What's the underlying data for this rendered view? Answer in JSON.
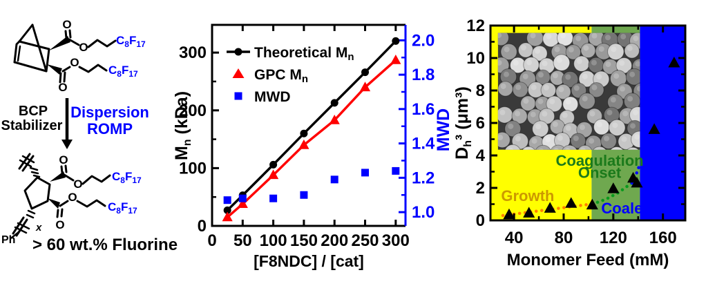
{
  "colors": {
    "accent_blue": "#0000FF",
    "series_black": "#000000",
    "series_red": "#FF0000",
    "region_yellow": "#FFFF00",
    "region_green": "#6FA84F",
    "region_blue": "#0000FF",
    "growth_text": "#CC9900",
    "coagulation_text": "#1B7A1B",
    "trend_orange": "#FF8000",
    "trend_green": "#0A9A1E",
    "trend_blue": "#0000FF"
  },
  "left_panel": {
    "bcp_line1": "BCP",
    "bcp_line2": "Stabilizer",
    "romp_line1": "Dispersion",
    "romp_line2": "ROMP",
    "fluorine_note": "> 60 wt.% Fluorine",
    "ph_label": "Ph",
    "repeat_subscript": "x",
    "o_atom": "O",
    "c8f17_parts": {
      "c": "C",
      "sub1": "8",
      "f": "F",
      "sub2": "17"
    }
  },
  "chart_data": [
    {
      "id": "mn_mwd_plot",
      "type": "line",
      "x": [
        25,
        50,
        100,
        150,
        200,
        250,
        300
      ],
      "series": [
        {
          "name_base": "Theoretical M",
          "name_sub": "n",
          "axis": "left",
          "color": "#000000",
          "marker": "circle",
          "line": true,
          "values": [
            27,
            53,
            106,
            160,
            213,
            266,
            320
          ]
        },
        {
          "name_base": "GPC M",
          "name_sub": "n",
          "axis": "left",
          "color": "#FF0000",
          "marker": "triangle",
          "line": true,
          "values": [
            15,
            38,
            88,
            140,
            183,
            240,
            287
          ]
        },
        {
          "name_base": "MWD",
          "name_sub": "",
          "axis": "right",
          "color": "#0000FF",
          "marker": "square",
          "line": false,
          "values": [
            1.07,
            1.08,
            1.08,
            1.1,
            1.19,
            1.23,
            1.24
          ]
        }
      ],
      "legend": [
        {
          "base": "Theoretical M",
          "sub": "n"
        },
        {
          "base": "GPC M",
          "sub": "n"
        },
        {
          "base": "MWD",
          "sub": ""
        }
      ],
      "xlabel": "[F8NDC] / [cat]",
      "ylabel_left": {
        "base": "M",
        "sub": "n",
        "rest": " (kDa)"
      },
      "ylabel_right": "MWD",
      "xlim": [
        0,
        316
      ],
      "ylim_left": [
        0,
        348
      ],
      "ylim_right": [
        0.92,
        2.09
      ],
      "xticks": [
        0,
        50,
        100,
        150,
        200,
        250,
        300
      ],
      "yticks_left": [
        0,
        100,
        200,
        300
      ],
      "yminor_left": [
        50,
        150,
        250
      ],
      "yticks_right": [
        "1.0",
        "1.2",
        "1.4",
        "1.6",
        "1.8",
        "2.0"
      ],
      "yminor_right": [
        1.1,
        1.3,
        1.5,
        1.7,
        1.9
      ],
      "grid": false,
      "legend_position": "upper-left"
    },
    {
      "id": "dispersion_growth_plot",
      "type": "scatter",
      "xlabel": "Monomer Feed (mM)",
      "ylabel": {
        "base": "D",
        "sub": "h",
        "rest": "³ (μm³)"
      },
      "xlim": [
        21,
        178
      ],
      "ylim": [
        0,
        12
      ],
      "xticks": [
        40,
        80,
        120,
        160
      ],
      "xminor": [
        60,
        100,
        140
      ],
      "yticks": [
        0,
        2,
        4,
        6,
        8,
        10,
        12
      ],
      "yminor": [
        1,
        3,
        5,
        7,
        9,
        11
      ],
      "points": [
        [
          36,
          0.35
        ],
        [
          52,
          0.45
        ],
        [
          69,
          0.75
        ],
        [
          86,
          1.05
        ],
        [
          103,
          0.95
        ],
        [
          120,
          1.95
        ],
        [
          136,
          2.6
        ],
        [
          139,
          2.3
        ],
        [
          153,
          5.6
        ],
        [
          169,
          9.7
        ]
      ],
      "marker": "triangle",
      "marker_color": "#000000",
      "regions": [
        {
          "name": "growth",
          "from": 21,
          "to": 102.5,
          "color": "#FFFF00"
        },
        {
          "name": "coagulation-onset",
          "from": 102.5,
          "to": 141.5,
          "color": "#6FA84F"
        },
        {
          "name": "coalescence",
          "from": 141.5,
          "to": 178,
          "color": "#0000FF"
        }
      ],
      "region_labels": [
        {
          "text": "Growth",
          "x": 51,
          "y": 1.53,
          "color": "#CC9900"
        },
        {
          "text": "Coagulation",
          "x": 109,
          "y": 3.7,
          "color": "#1B7A1B"
        },
        {
          "text": "Onset",
          "x": 109,
          "y": 2.95,
          "color": "#1B7A1B"
        },
        {
          "text": "Coale",
          "x": 127,
          "y": 0.77,
          "color": "#0000FF"
        }
      ],
      "trends": [
        {
          "color": "#FF8000",
          "points": [
            [
              31,
              0.3
            ],
            [
              104,
              1.02
            ]
          ]
        },
        {
          "color": "#0A9A1E",
          "points": [
            [
              103,
              1.0
            ],
            [
              114,
              1.3
            ],
            [
              124,
              1.7
            ],
            [
              133,
              2.2
            ],
            [
              141,
              2.6
            ]
          ]
        },
        {
          "color": "#0000FF",
          "points": [
            [
              135,
              2.3
            ],
            [
              138,
              2.75
            ],
            [
              140,
              3.15
            ],
            [
              141.5,
              3.5
            ]
          ]
        }
      ],
      "inset": {
        "description": "SEM image of monodisperse polymer microspheres",
        "x_from": 27,
        "x_to": 141.5,
        "y_from": 4.35,
        "y_to": 11.55
      }
    }
  ]
}
